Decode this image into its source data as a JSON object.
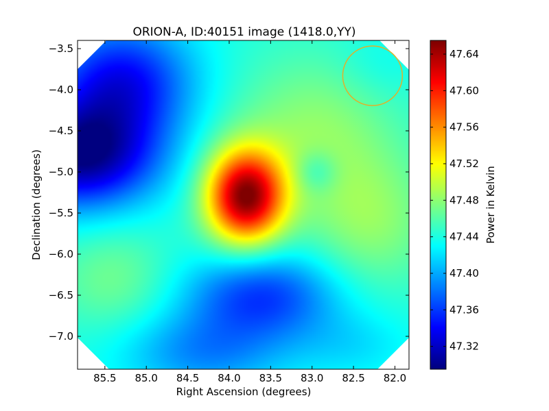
{
  "chart_data": {
    "type": "heatmap",
    "title": "ORION-A, ID:40151 image (1418.0,YY)",
    "xlabel": "Right Ascension (degrees)",
    "ylabel": "Declination (degrees)",
    "colorbar_label": "Power in Kelvin",
    "xlim": [
      85.83,
      81.83
    ],
    "ylim": [
      -7.4,
      -3.4
    ],
    "x_ticks": [
      85.5,
      85.0,
      84.5,
      84.0,
      83.5,
      83.0,
      82.5,
      82.0
    ],
    "x_tick_labels": [
      "85.5",
      "85.0",
      "84.5",
      "84.0",
      "83.5",
      "83.0",
      "82.5",
      "82.0"
    ],
    "y_ticks": [
      -3.5,
      -4.0,
      -4.5,
      -5.0,
      -5.5,
      -6.0,
      -6.5,
      -7.0
    ],
    "y_tick_labels": [
      "−3.5",
      "−4.0",
      "−4.5",
      "−5.0",
      "−5.5",
      "−6.0",
      "−6.5",
      "−7.0"
    ],
    "colorbar_range": [
      47.295,
      47.655
    ],
    "colorbar_ticks": [
      47.32,
      47.36,
      47.4,
      47.44,
      47.48,
      47.52,
      47.56,
      47.6,
      47.64
    ],
    "colorbar_tick_labels": [
      "47.32",
      "47.36",
      "47.40",
      "47.44",
      "47.48",
      "47.52",
      "47.56",
      "47.60",
      "47.64"
    ],
    "colormap": "jet",
    "base_value": 47.44,
    "features": [
      {
        "ra": 83.8,
        "dec": -5.3,
        "value": 47.65,
        "sigma_ra": 0.33,
        "sigma_dec": 0.4
      },
      {
        "ra": 85.8,
        "dec": -4.8,
        "value": 47.3,
        "sigma_ra": 0.65,
        "sigma_dec": 0.45
      },
      {
        "ra": 85.3,
        "dec": -3.9,
        "value": 47.34,
        "sigma_ra": 0.6,
        "sigma_dec": 0.5
      },
      {
        "ra": 83.6,
        "dec": -6.5,
        "value": 47.36,
        "sigma_ra": 0.65,
        "sigma_dec": 0.38
      },
      {
        "ra": 84.3,
        "dec": -7.2,
        "value": 47.39,
        "sigma_ra": 0.7,
        "sigma_dec": 0.35
      },
      {
        "ra": 83.0,
        "dec": -4.5,
        "value": 47.48,
        "sigma_ra": 0.7,
        "sigma_dec": 0.65
      },
      {
        "ra": 82.3,
        "dec": -5.6,
        "value": 47.48,
        "sigma_ra": 0.55,
        "sigma_dec": 0.6
      },
      {
        "ra": 85.4,
        "dec": -6.3,
        "value": 47.47,
        "sigma_ra": 0.5,
        "sigma_dec": 0.45
      },
      {
        "ra": 82.95,
        "dec": -5.0,
        "value": 47.41,
        "sigma_ra": 0.18,
        "sigma_dec": 0.18
      },
      {
        "ra": 82.2,
        "dec": -3.7,
        "value": 47.43,
        "sigma_ra": 0.35,
        "sigma_dec": 0.3
      },
      {
        "ra": 82.5,
        "dec": -7.1,
        "value": 47.42,
        "sigma_ra": 0.5,
        "sigma_dec": 0.3
      }
    ],
    "beam_circle": {
      "ra": 82.27,
      "dec": -3.83,
      "radius_deg": 0.36,
      "color": "#e0b02a"
    },
    "masked_corner_color": "#ffffff",
    "grid": false
  }
}
